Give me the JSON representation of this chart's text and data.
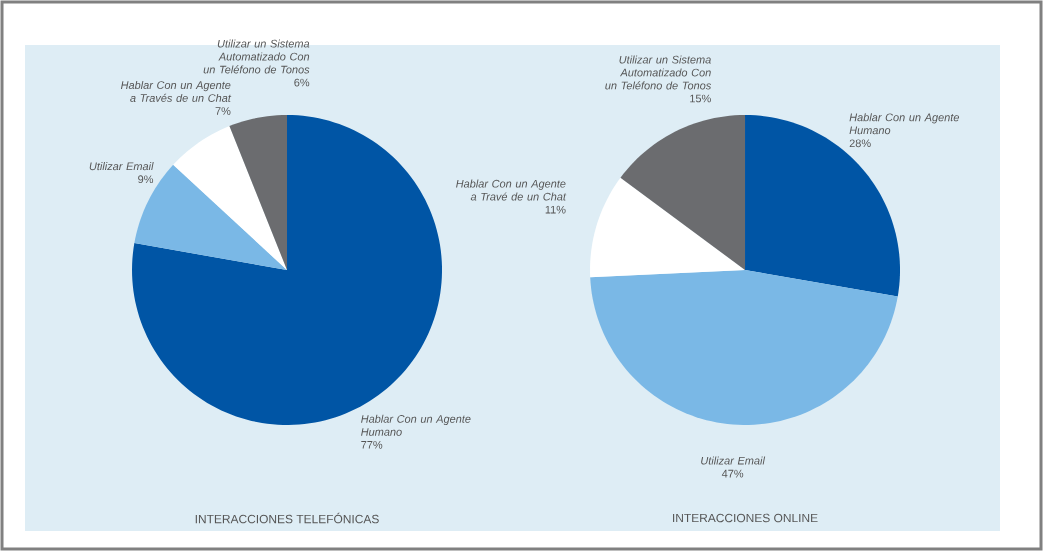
{
  "chart_data": [
    {
      "type": "pie",
      "title": "INTERACCIONES TELEFÓNICAS",
      "categories": [
        "Hablar Con un Agente Humano",
        "Utilizar Email",
        "Hablar Con un Agente a Través de un Chat",
        "Utilizar un Sistema Automatizado Con un Teléfono de Tonos"
      ],
      "values": [
        77,
        9,
        7,
        6
      ],
      "value_labels": [
        "77%",
        "9%",
        "7%",
        "6%"
      ],
      "colors": [
        "#0055a5",
        "#7ab8e6",
        "#ffffff",
        "#6b6c6f"
      ]
    },
    {
      "type": "pie",
      "title": "INTERACCIONES ONLINE",
      "categories": [
        "Hablar Con un Agente Humano",
        "Utilizar Email",
        "Hablar Con un Agente a Travé de un Chat",
        "Utilizar un Sistema Automatizado Con un Teléfono de Tonos"
      ],
      "values": [
        28,
        47,
        11,
        15
      ],
      "value_labels": [
        "28%",
        "47%",
        "11%",
        "15%"
      ],
      "colors": [
        "#0055a5",
        "#7ab8e6",
        "#ffffff",
        "#6b6c6f"
      ]
    }
  ]
}
